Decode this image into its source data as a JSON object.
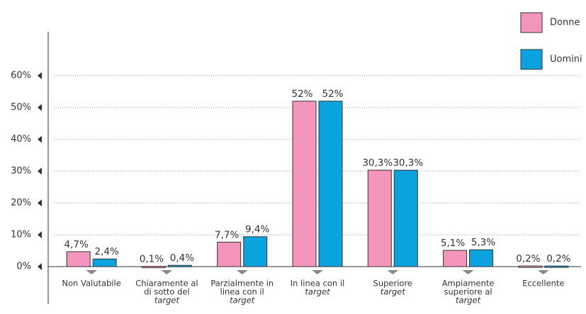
{
  "chart_data": {
    "type": "bar",
    "categories": [
      [
        "Non Valutabile"
      ],
      [
        "Chiaramente al",
        "di sotto del",
        "target"
      ],
      [
        "Parzialmente in",
        "linea con il",
        "target"
      ],
      [
        "In linea con il",
        "target"
      ],
      [
        "Superiore",
        "target"
      ],
      [
        "Ampiamente",
        "superiore al",
        "target"
      ],
      [
        "Eccellente"
      ]
    ],
    "series": [
      {
        "name": "Donne",
        "color": "#f395bd",
        "values": [
          4.7,
          0.1,
          7.7,
          52,
          30.3,
          5.1,
          0.2
        ],
        "value_labels": [
          "4,7%",
          "0,1%",
          "7,7%",
          "52%",
          "30,3%",
          "5,1%",
          "0,2%"
        ]
      },
      {
        "name": "Uomini",
        "color": "#0aa3e0",
        "values": [
          2.4,
          0.4,
          9.4,
          52,
          30.3,
          5.3,
          0.2
        ],
        "value_labels": [
          "2,4%",
          "0,4%",
          "9,4%",
          "52%",
          "30,3%",
          "5,3%",
          "0,2%"
        ]
      }
    ],
    "ylim": [
      0,
      60
    ],
    "yticks": [
      {
        "value": 0,
        "label": "0%"
      },
      {
        "value": 10,
        "label": "10%"
      },
      {
        "value": 20,
        "label": "20%"
      },
      {
        "value": 30,
        "label": "30%"
      },
      {
        "value": 40,
        "label": "40%"
      },
      {
        "value": 50,
        "label": "50%"
      },
      {
        "value": 60,
        "label": "60%"
      }
    ],
    "grid": true
  }
}
